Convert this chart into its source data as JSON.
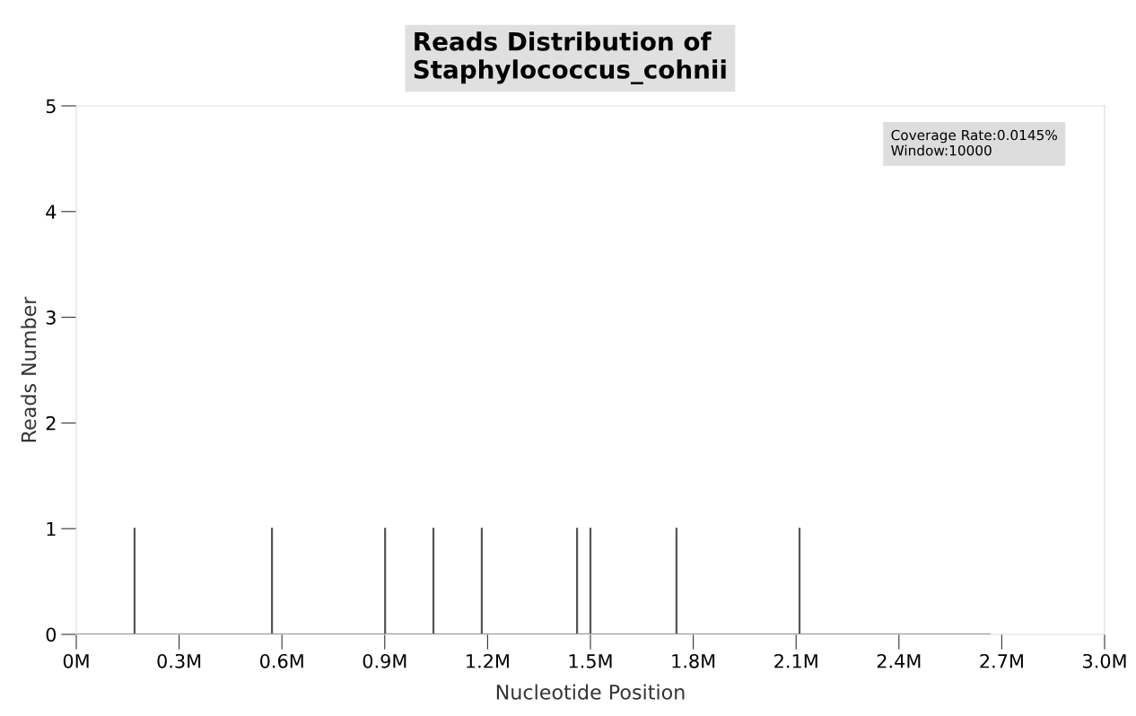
{
  "chart_data": {
    "type": "line",
    "title": "Reads Distribution of\nStaphylococcus_cohnii",
    "xlabel": "Nucleotide Position",
    "ylabel": "Reads Number",
    "annotations": [
      "Coverage Rate:0.0145%\nWindow:10000"
    ],
    "series": [
      {
        "color": "#555555",
        "x": [
          0,
          0.17,
          0.17,
          0.17,
          0.571,
          0.571,
          0.571,
          0.901,
          0.901,
          0.901,
          1.042,
          1.042,
          1.042,
          1.183,
          1.183,
          1.183,
          1.461,
          1.461,
          1.461,
          1.5,
          1.5,
          1.5,
          1.751,
          1.751,
          1.751,
          2.11,
          2.11,
          2.11,
          2.665
        ],
        "values": [
          0,
          0,
          1,
          0,
          0,
          1,
          0,
          0,
          1,
          0,
          0,
          1,
          0,
          0,
          1,
          0,
          0,
          1,
          0,
          0,
          1,
          0,
          0,
          1,
          0,
          0,
          1,
          0,
          0
        ]
      }
    ],
    "xlim": [
      0,
      3.0
    ],
    "xticks": [
      {
        "value": 0,
        "label": "0M"
      },
      {
        "value": 0.3,
        "label": "0.3M"
      },
      {
        "value": 0.6,
        "label": "0.6M"
      },
      {
        "value": 0.9,
        "label": "0.9M"
      },
      {
        "value": 1.2,
        "label": "1.2M"
      },
      {
        "value": 1.5,
        "label": "1.5M"
      },
      {
        "value": 1.8,
        "label": "1.8M"
      },
      {
        "value": 2.1,
        "label": "2.1M"
      },
      {
        "value": 2.4,
        "label": "2.4M"
      },
      {
        "value": 2.7,
        "label": "2.7M"
      },
      {
        "value": 3.0,
        "label": "3.0M"
      }
    ],
    "ylim": [
      0,
      5
    ],
    "yticks": [
      0,
      1,
      2,
      3,
      4,
      5
    ],
    "grid": false,
    "marker": "none",
    "line_style": "solid"
  }
}
